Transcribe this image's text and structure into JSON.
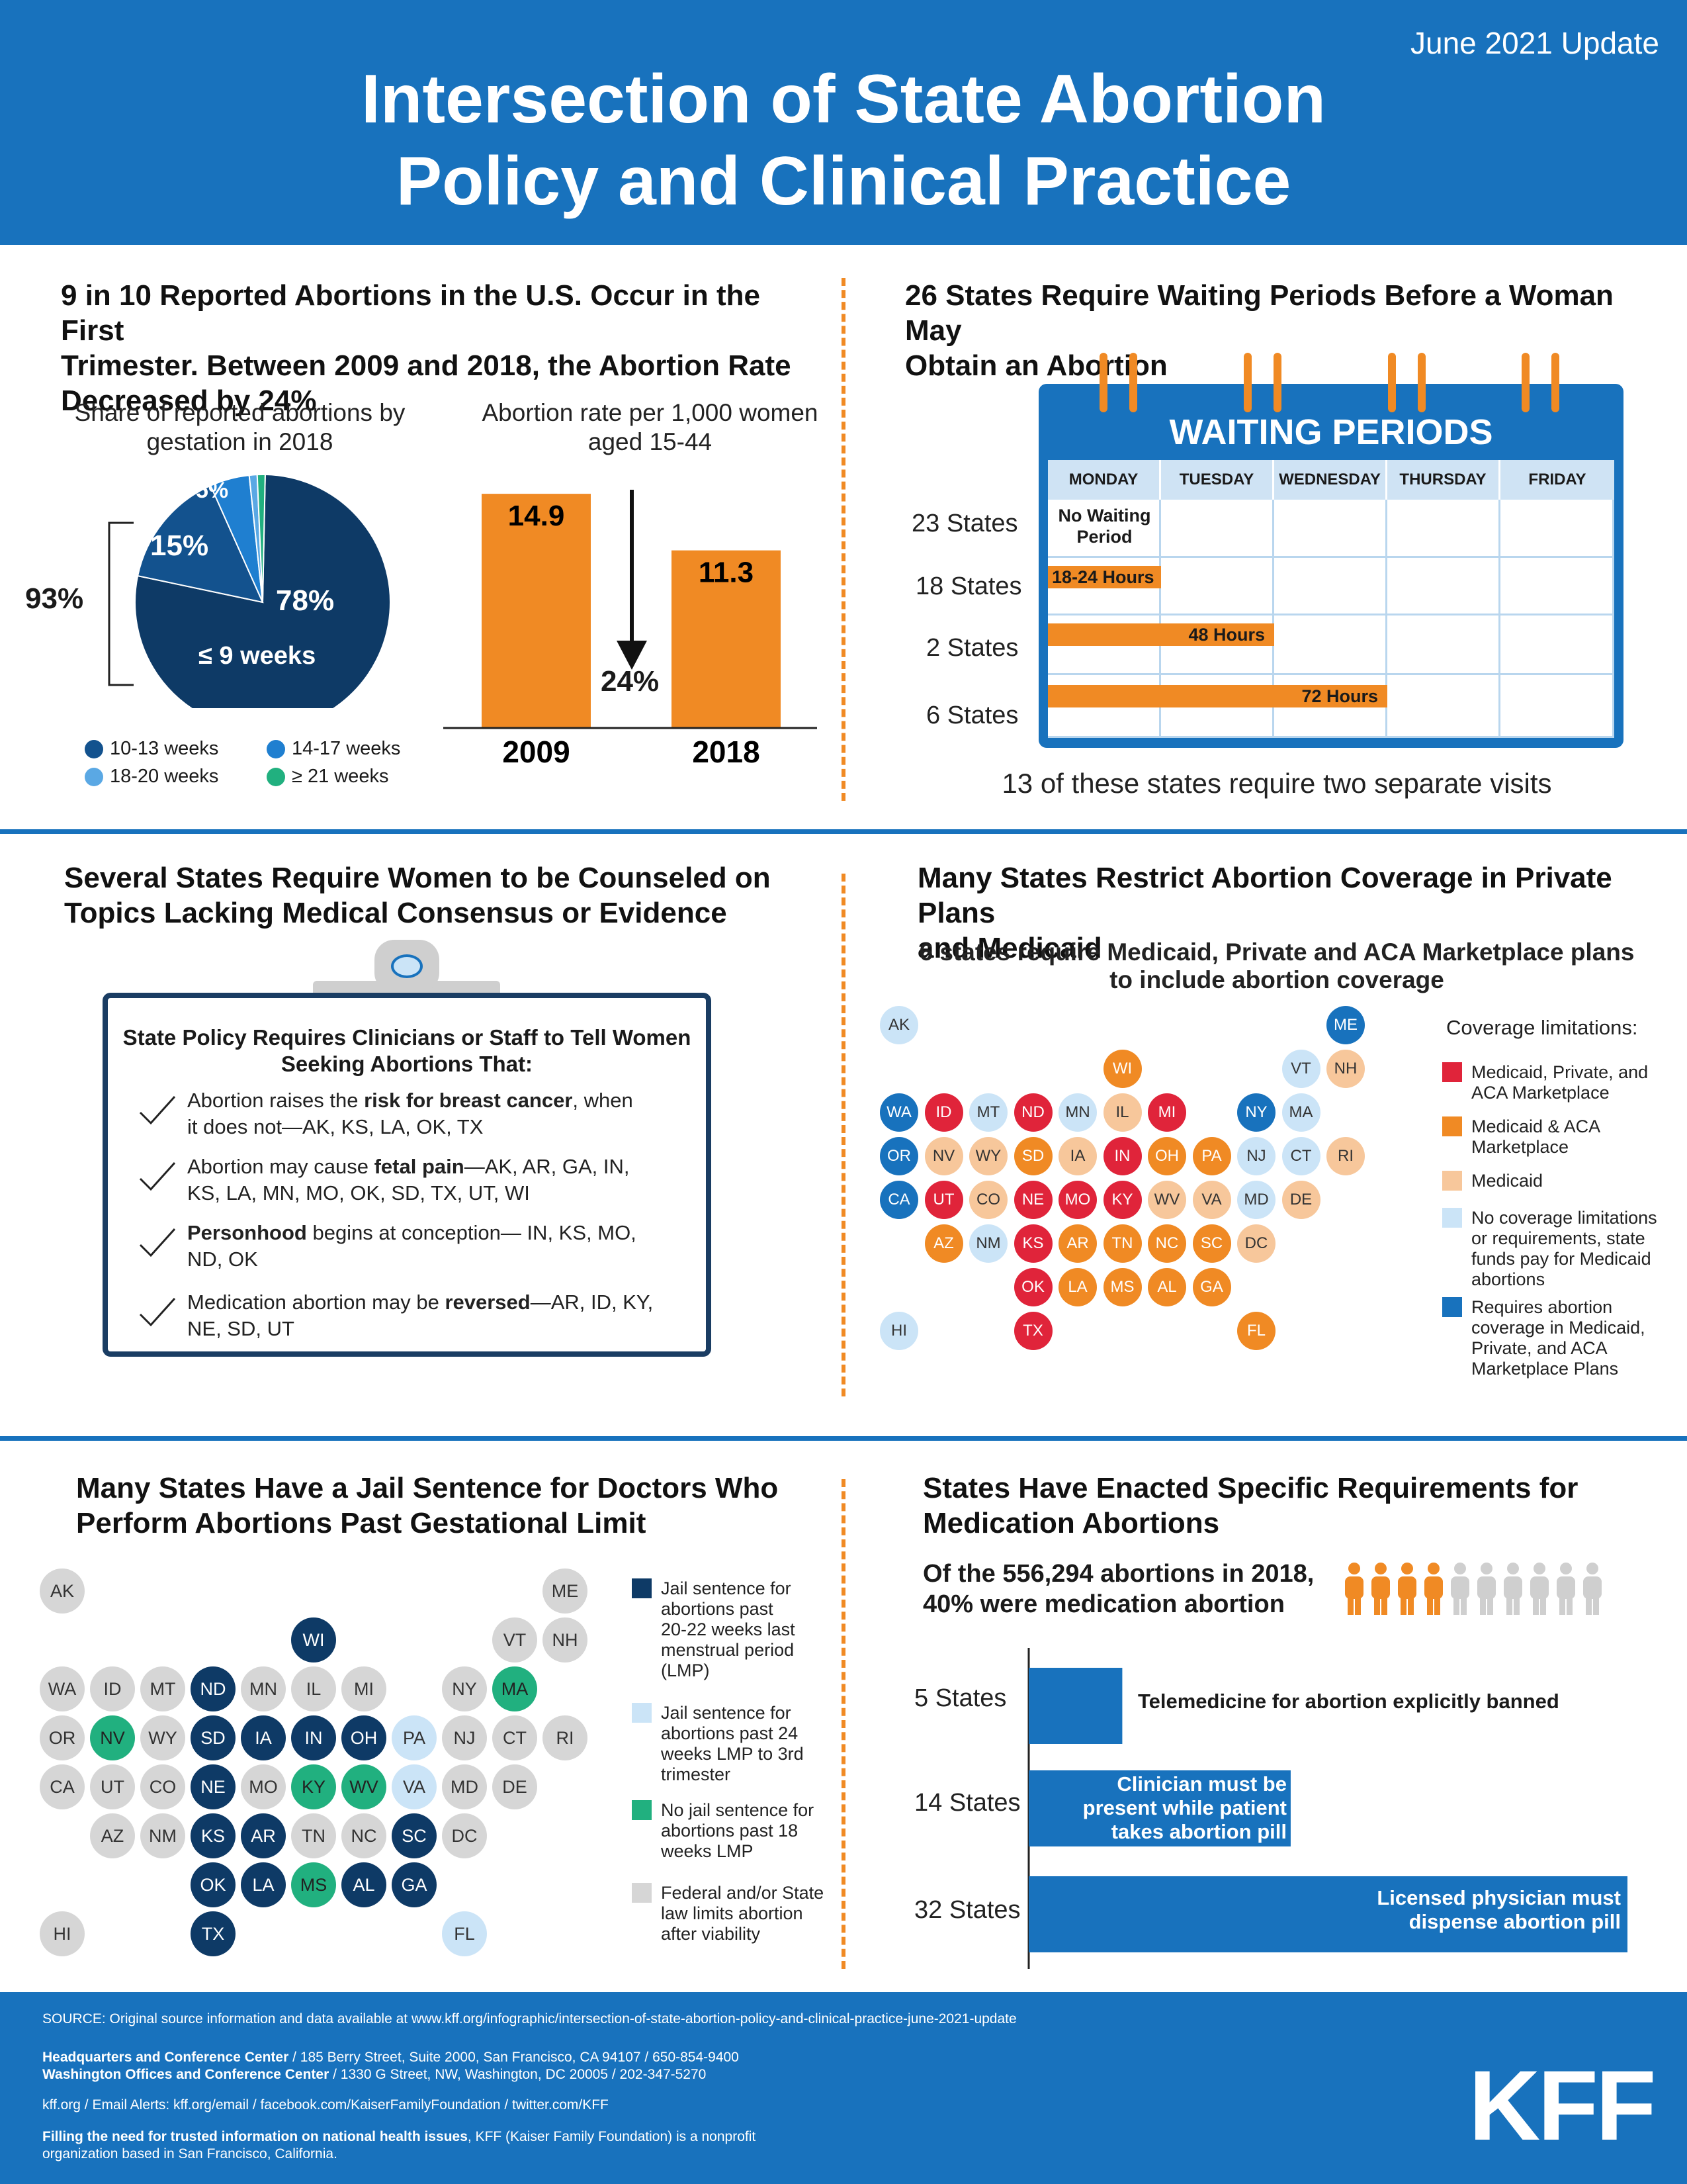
{
  "header": {
    "update": "June 2021 Update",
    "title_line1": "Intersection of State Abortion",
    "title_line2": "Policy and Clinical Practice"
  },
  "colors": {
    "brand_blue": "#1872bd",
    "navy": "#0e3a66",
    "orange": "#f08a24",
    "red": "#e0243a",
    "peach": "#f7c79b",
    "light_blue": "#cbe4f7",
    "green": "#21b07f",
    "gray": "#d6d6d6"
  },
  "s1": {
    "heading_l1": "9 in 10 Reported Abortions in the U.S. Occur in the First",
    "heading_l2": "Trimester. Between 2009 and 2018, the Abortion Rate",
    "heading_l3": "Decreased by 24%",
    "pie_sub_l1": "Share of reported abortions by",
    "pie_sub_l2": "gestation in 2018",
    "bar_sub_l1": "Abortion rate per 1,000 women",
    "bar_sub_l2": "aged 15-44",
    "bracket_label": "93%",
    "pie_label_main_pct": "78%",
    "pie_label_main": "≤ 9 weeks",
    "pie_label_15": "15%",
    "pie_label_5": "5%",
    "change_label": "24%",
    "legend": [
      "10-13 weeks",
      "14-17 weeks",
      "18-20 weeks",
      "≥ 21 weeks"
    ],
    "bar_labels": [
      "14.9",
      "11.3"
    ],
    "bar_years": [
      "2009",
      "2018"
    ]
  },
  "chart_data": [
    {
      "type": "pie",
      "labels": [
        "≤ 9 weeks",
        "10-13 weeks",
        "14-17 weeks",
        "18-20 weeks",
        "≥ 21 weeks"
      ],
      "values": [
        78,
        15,
        5,
        1,
        1
      ],
      "colors": [
        "#0e3a66",
        "#13528e",
        "#1f7fd0",
        "#5aa8e4",
        "#21b07f"
      ]
    },
    {
      "type": "bar",
      "categories": [
        "2009",
        "2018"
      ],
      "values": [
        14.9,
        11.3
      ],
      "ylim": [
        0,
        16
      ]
    },
    {
      "type": "bar",
      "categories": [
        "5 States",
        "14 States",
        "32 States"
      ],
      "values": [
        5,
        14,
        32
      ],
      "labels": [
        "Telemedicine for abortion explicitly banned",
        "Clinician must be present while patient takes abortion pill",
        "Licensed physician must dispense abortion pill"
      ]
    }
  ],
  "s2": {
    "heading_l1": "26 States Require Waiting Periods Before a Woman May",
    "heading_l2": "Obtain an Abortion",
    "cal_title": "WAITING PERIODS",
    "days": [
      "MONDAY",
      "TUESDAY",
      "WEDNESDAY",
      "THURSDAY",
      "FRIDAY"
    ],
    "rows": [
      "23 States",
      "18 States",
      "2 States",
      "6 States"
    ],
    "no_wait_l1": "No Waiting",
    "no_wait_l2": "Period",
    "bar1": "18-24 Hours",
    "bar2": "48 Hours",
    "bar3": "72 Hours",
    "note": "13 of these states require two separate visits"
  },
  "s3": {
    "heading_l1": "Several States Require Women to be Counseled on",
    "heading_l2": "Topics Lacking Medical Consensus or Evidence",
    "clip_title_l1": "State Policy Requires Clinicians or Staff to Tell Women",
    "clip_title_l2": "Seeking Abortions That:",
    "item1_a": "Abortion raises the ",
    "item1_b": "risk for breast cancer",
    "item1_c": ", when",
    "item1_l2": "it does not—AK, KS, LA, OK, TX",
    "item2_a": "Abortion may cause ",
    "item2_b": "fetal pain",
    "item2_c": "—AK, AR, GA, IN,",
    "item2_l2": "KS, LA, MN, MO, OK, SD, TX, UT, WI",
    "item3_b": "Personhood",
    "item3_c": " begins at conception— IN, KS, MO,",
    "item3_l2": "ND, OK",
    "item4_a": "Medication abortion may be ",
    "item4_b": "reversed",
    "item4_c": "—AR, ID, KY,",
    "item4_l2": "NE, SD, UT"
  },
  "s4": {
    "heading_l1": "Many States Restrict Abortion Coverage in Private Plans",
    "heading_l2": "and Medicaid",
    "sub_l1": "6 states require Medicaid, Private and ACA Marketplace plans",
    "sub_l2": "to include abortion coverage",
    "legend_title": "Coverage limitations:",
    "legend": [
      {
        "l1": "Medicaid, Private, and",
        "l2": "ACA Marketplace",
        "l3": "",
        "l4": ""
      },
      {
        "l1": "Medicaid & ACA",
        "l2": "Marketplace",
        "l3": "",
        "l4": ""
      },
      {
        "l1": "Medicaid",
        "l2": "",
        "l3": "",
        "l4": ""
      },
      {
        "l1": "No coverage limitations",
        "l2": "or requirements, state",
        "l3": "funds pay for Medicaid",
        "l4": "abortions"
      },
      {
        "l1": "Requires abortion",
        "l2": "coverage in Medicaid,",
        "l3": "Private, and ACA",
        "l4": "Marketplace Plans"
      }
    ],
    "states": [
      {
        "s": "AK",
        "c": "N"
      },
      {
        "s": "ME",
        "c": "B"
      },
      {
        "s": "WI",
        "c": "O"
      },
      {
        "s": "VT",
        "c": "N"
      },
      {
        "s": "NH",
        "c": "P"
      },
      {
        "s": "WA",
        "c": "B"
      },
      {
        "s": "ID",
        "c": "R"
      },
      {
        "s": "MT",
        "c": "N"
      },
      {
        "s": "ND",
        "c": "R"
      },
      {
        "s": "MN",
        "c": "N"
      },
      {
        "s": "IL",
        "c": "P"
      },
      {
        "s": "MI",
        "c": "R"
      },
      {
        "s": "NY",
        "c": "B"
      },
      {
        "s": "MA",
        "c": "N"
      },
      {
        "s": "OR",
        "c": "B"
      },
      {
        "s": "NV",
        "c": "P"
      },
      {
        "s": "WY",
        "c": "P"
      },
      {
        "s": "SD",
        "c": "O"
      },
      {
        "s": "IA",
        "c": "P"
      },
      {
        "s": "IN",
        "c": "R"
      },
      {
        "s": "OH",
        "c": "O"
      },
      {
        "s": "PA",
        "c": "O"
      },
      {
        "s": "NJ",
        "c": "N"
      },
      {
        "s": "CT",
        "c": "N"
      },
      {
        "s": "RI",
        "c": "P"
      },
      {
        "s": "CA",
        "c": "B"
      },
      {
        "s": "UT",
        "c": "R"
      },
      {
        "s": "CO",
        "c": "P"
      },
      {
        "s": "NE",
        "c": "R"
      },
      {
        "s": "MO",
        "c": "R"
      },
      {
        "s": "KY",
        "c": "R"
      },
      {
        "s": "WV",
        "c": "P"
      },
      {
        "s": "VA",
        "c": "P"
      },
      {
        "s": "MD",
        "c": "N"
      },
      {
        "s": "DE",
        "c": "P"
      },
      {
        "s": "AZ",
        "c": "O"
      },
      {
        "s": "NM",
        "c": "N"
      },
      {
        "s": "KS",
        "c": "R"
      },
      {
        "s": "AR",
        "c": "O"
      },
      {
        "s": "TN",
        "c": "O"
      },
      {
        "s": "NC",
        "c": "O"
      },
      {
        "s": "SC",
        "c": "O"
      },
      {
        "s": "DC",
        "c": "P"
      },
      {
        "s": "OK",
        "c": "R"
      },
      {
        "s": "LA",
        "c": "O"
      },
      {
        "s": "MS",
        "c": "O"
      },
      {
        "s": "AL",
        "c": "O"
      },
      {
        "s": "GA",
        "c": "O"
      },
      {
        "s": "HI",
        "c": "N"
      },
      {
        "s": "TX",
        "c": "R"
      },
      {
        "s": "FL",
        "c": "O"
      }
    ]
  },
  "s5": {
    "heading_l1": "Many States Have a Jail Sentence for Doctors Who",
    "heading_l2": "Perform Abortions Past Gestational Limit",
    "legend": [
      {
        "l1": "Jail sentence for",
        "l2": "abortions past",
        "l3": "20-22 weeks last",
        "l4": "menstrual period",
        "l5": "(LMP)"
      },
      {
        "l1": "Jail sentence for",
        "l2": "abortions past 24",
        "l3": "weeks LMP to 3rd",
        "l4": "trimester",
        "l5": ""
      },
      {
        "l1": "No jail sentence for",
        "l2": "abortions past 18",
        "l3": "weeks LMP",
        "l4": "",
        "l5": ""
      },
      {
        "l1": "Federal and/or State",
        "l2": "law limits abortion",
        "l3": "after viability",
        "l4": "",
        "l5": ""
      }
    ],
    "states": [
      {
        "s": "AK",
        "c": "G"
      },
      {
        "s": "ME",
        "c": "G"
      },
      {
        "s": "WI",
        "c": "D"
      },
      {
        "s": "VT",
        "c": "G"
      },
      {
        "s": "NH",
        "c": "G"
      },
      {
        "s": "WA",
        "c": "G"
      },
      {
        "s": "ID",
        "c": "G"
      },
      {
        "s": "MT",
        "c": "G"
      },
      {
        "s": "ND",
        "c": "D"
      },
      {
        "s": "MN",
        "c": "G"
      },
      {
        "s": "IL",
        "c": "G"
      },
      {
        "s": "MI",
        "c": "G"
      },
      {
        "s": "NY",
        "c": "G"
      },
      {
        "s": "MA",
        "c": "T"
      },
      {
        "s": "OR",
        "c": "G"
      },
      {
        "s": "NV",
        "c": "T"
      },
      {
        "s": "WY",
        "c": "G"
      },
      {
        "s": "SD",
        "c": "D"
      },
      {
        "s": "IA",
        "c": "D"
      },
      {
        "s": "IN",
        "c": "D"
      },
      {
        "s": "OH",
        "c": "D"
      },
      {
        "s": "PA",
        "c": "L"
      },
      {
        "s": "NJ",
        "c": "G"
      },
      {
        "s": "CT",
        "c": "G"
      },
      {
        "s": "RI",
        "c": "G"
      },
      {
        "s": "CA",
        "c": "G"
      },
      {
        "s": "UT",
        "c": "G"
      },
      {
        "s": "CO",
        "c": "G"
      },
      {
        "s": "NE",
        "c": "D"
      },
      {
        "s": "MO",
        "c": "G"
      },
      {
        "s": "KY",
        "c": "T"
      },
      {
        "s": "WV",
        "c": "T"
      },
      {
        "s": "VA",
        "c": "L"
      },
      {
        "s": "MD",
        "c": "G"
      },
      {
        "s": "DE",
        "c": "G"
      },
      {
        "s": "AZ",
        "c": "G"
      },
      {
        "s": "NM",
        "c": "G"
      },
      {
        "s": "KS",
        "c": "D"
      },
      {
        "s": "AR",
        "c": "D"
      },
      {
        "s": "TN",
        "c": "G"
      },
      {
        "s": "NC",
        "c": "G"
      },
      {
        "s": "SC",
        "c": "D"
      },
      {
        "s": "DC",
        "c": "G"
      },
      {
        "s": "OK",
        "c": "D"
      },
      {
        "s": "LA",
        "c": "D"
      },
      {
        "s": "MS",
        "c": "T"
      },
      {
        "s": "AL",
        "c": "D"
      },
      {
        "s": "GA",
        "c": "D"
      },
      {
        "s": "HI",
        "c": "G"
      },
      {
        "s": "TX",
        "c": "D"
      },
      {
        "s": "FL",
        "c": "L"
      }
    ]
  },
  "s6": {
    "heading_l1": "States Have Enacted Specific Requirements for",
    "heading_l2": "Medication Abortions",
    "stat_l1": "Of the 556,294 abortions in 2018,",
    "stat_l2": "40% were medication abortion",
    "people_total": 10,
    "people_highlight": 4,
    "rows": [
      "5 States",
      "14 States",
      "32 States"
    ],
    "bar1": "Telemedicine for abortion explicitly banned",
    "bar2_l1": "Clinician must be",
    "bar2_l2": "present while patient",
    "bar2_l3": "takes abortion pill",
    "bar3_l1": "Licensed physician must",
    "bar3_l2": "dispense abortion pill"
  },
  "footer": {
    "source": "SOURCE: Original source information and data available at www.kff.org/infographic/intersection-of-state-abortion-policy-and-clinical-practice-june-2021-update",
    "hq_bold": "Headquarters and Conference Center",
    "hq_rest": " / 185 Berry Street, Suite 2000, San Francisco, CA 94107 / 650-854-9400",
    "dc_bold": "Washington Offices and Conference Center",
    "dc_rest": " / 1330 G Street, NW, Washington, DC 20005 / 202-347-5270",
    "links": "kff.org / Email Alerts: kff.org/email / facebook.com/KaiserFamilyFoundation / twitter.com/KFF",
    "mission_bold": "Filling the need for trusted information on national health issues",
    "mission_rest": ", KFF (Kaiser Family Foundation) is a nonprofit",
    "mission_l2": "organization based in San Francisco, California.",
    "logo": "KFF"
  }
}
